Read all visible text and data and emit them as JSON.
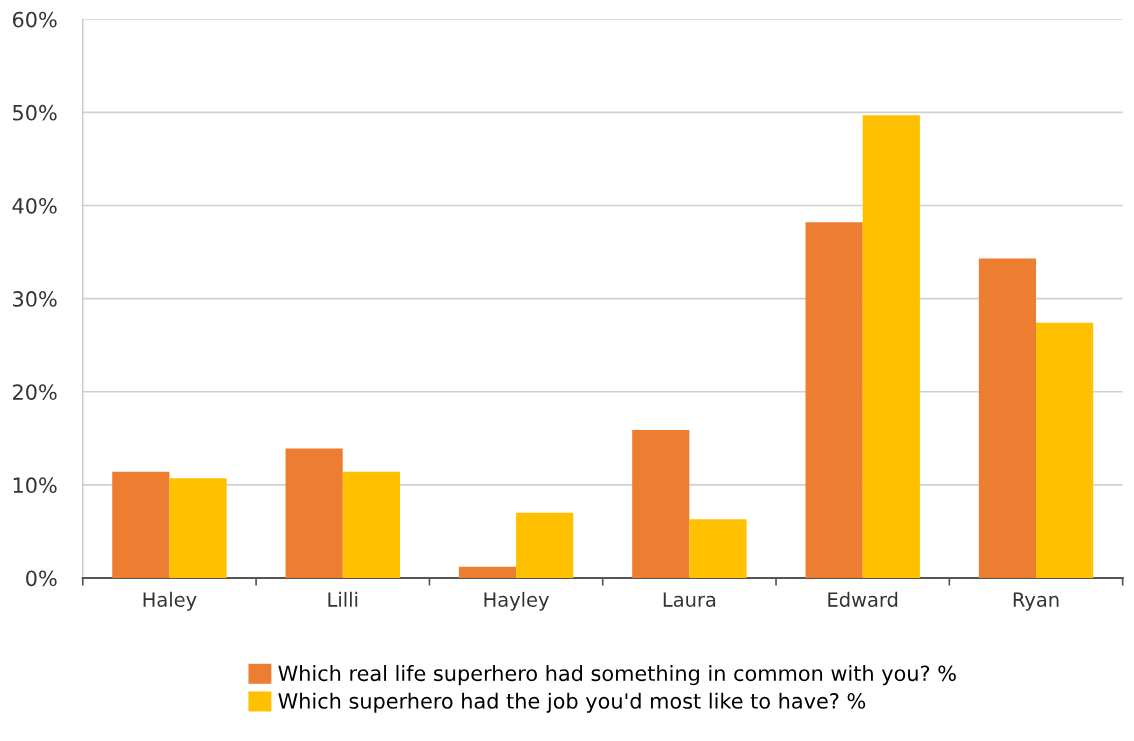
{
  "chart_data": {
    "type": "bar",
    "categories": [
      "Haley",
      "Lilli",
      "Hayley",
      "Laura",
      "Edward",
      "Ryan"
    ],
    "series": [
      {
        "name": "Which real life superhero had something in common with you? %",
        "color": "#ed7d31",
        "values": [
          11.4,
          13.9,
          1.2,
          15.9,
          38.2,
          34.3
        ]
      },
      {
        "name": "Which superhero had the job you'd most like to have? %",
        "color": "#ffc000",
        "values": [
          10.7,
          11.4,
          7.0,
          6.3,
          49.7,
          27.4
        ]
      }
    ],
    "ylim": [
      0,
      60
    ],
    "yticks": [
      {
        "value": 0,
        "label": "0%"
      },
      {
        "value": 10,
        "label": "10%"
      },
      {
        "value": 20,
        "label": "20%"
      },
      {
        "value": 30,
        "label": "30%"
      },
      {
        "value": 40,
        "label": "40%"
      },
      {
        "value": 50,
        "label": "50%"
      },
      {
        "value": 60,
        "label": "60%"
      }
    ],
    "grid": "y",
    "legend": "bottom"
  }
}
